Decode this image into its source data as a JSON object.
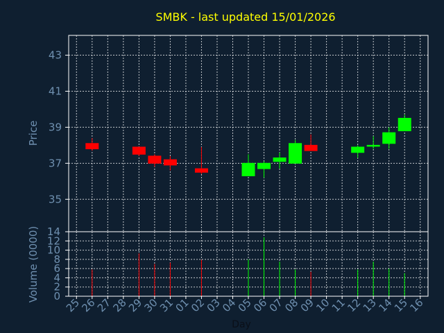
{
  "chart_data": {
    "type": "candlestick",
    "title": "SMBK - last updated 15/01/2026",
    "xlabel": "Day",
    "price_panel": {
      "ylabel": "Price",
      "ylim": [
        33.2,
        44.1
      ],
      "yticks": [
        35,
        37,
        39,
        41,
        43
      ]
    },
    "volume_panel": {
      "ylabel": "Volume (0000)",
      "ylim": [
        0,
        14
      ],
      "yticks": [
        0,
        2,
        4,
        6,
        8,
        10,
        12,
        14
      ]
    },
    "x_tick_labels": [
      "25",
      "26",
      "27",
      "28",
      "29",
      "30",
      "31",
      "01",
      "02",
      "03",
      "04",
      "05",
      "06",
      "07",
      "08",
      "09",
      "10",
      "11",
      "12",
      "13",
      "14",
      "15",
      "16"
    ],
    "grid": true,
    "colors": {
      "up": "#00ff00",
      "down": "#ff0000",
      "grid": "#ffffff",
      "panel_border": "#ffffff",
      "title": "#ffff00",
      "tick": "#6f90b0"
    },
    "candles": [
      {
        "day": "26",
        "open": 38.1,
        "high": 38.4,
        "low": 37.7,
        "close": 37.8,
        "volume": 5.8
      },
      {
        "day": "29",
        "open": 37.9,
        "high": 37.9,
        "low": 37.4,
        "close": 37.5,
        "volume": 9.3
      },
      {
        "day": "30",
        "open": 37.4,
        "high": 37.5,
        "low": 36.8,
        "close": 37.0,
        "volume": 7.0
      },
      {
        "day": "31",
        "open": 37.2,
        "high": 37.4,
        "low": 36.6,
        "close": 36.9,
        "volume": 7.3
      },
      {
        "day": "02",
        "open": 36.7,
        "high": 37.9,
        "low": 36.4,
        "close": 36.5,
        "volume": 7.9
      },
      {
        "day": "05",
        "open": 36.3,
        "high": 37.5,
        "low": 36.3,
        "close": 37.0,
        "volume": 8.0
      },
      {
        "day": "06",
        "open": 36.7,
        "high": 37.1,
        "low": 36.2,
        "close": 37.0,
        "volume": 12.8
      },
      {
        "day": "07",
        "open": 37.1,
        "high": 37.6,
        "low": 36.7,
        "close": 37.3,
        "volume": 7.5
      },
      {
        "day": "08",
        "open": 37.0,
        "high": 38.3,
        "low": 37.0,
        "close": 38.1,
        "volume": 5.8
      },
      {
        "day": "09",
        "open": 38.0,
        "high": 38.6,
        "low": 37.7,
        "close": 37.7,
        "volume": 5.3
      },
      {
        "day": "12",
        "open": 37.6,
        "high": 38.0,
        "low": 37.3,
        "close": 37.9,
        "volume": 5.8
      },
      {
        "day": "13",
        "open": 38.0,
        "high": 38.5,
        "low": 37.8,
        "close": 38.0,
        "volume": 7.5
      },
      {
        "day": "14",
        "open": 38.1,
        "high": 39.0,
        "low": 37.8,
        "close": 38.7,
        "volume": 6.0
      },
      {
        "day": "15",
        "open": 38.8,
        "high": 39.7,
        "low": 38.8,
        "close": 39.5,
        "volume": 5.0
      }
    ]
  }
}
